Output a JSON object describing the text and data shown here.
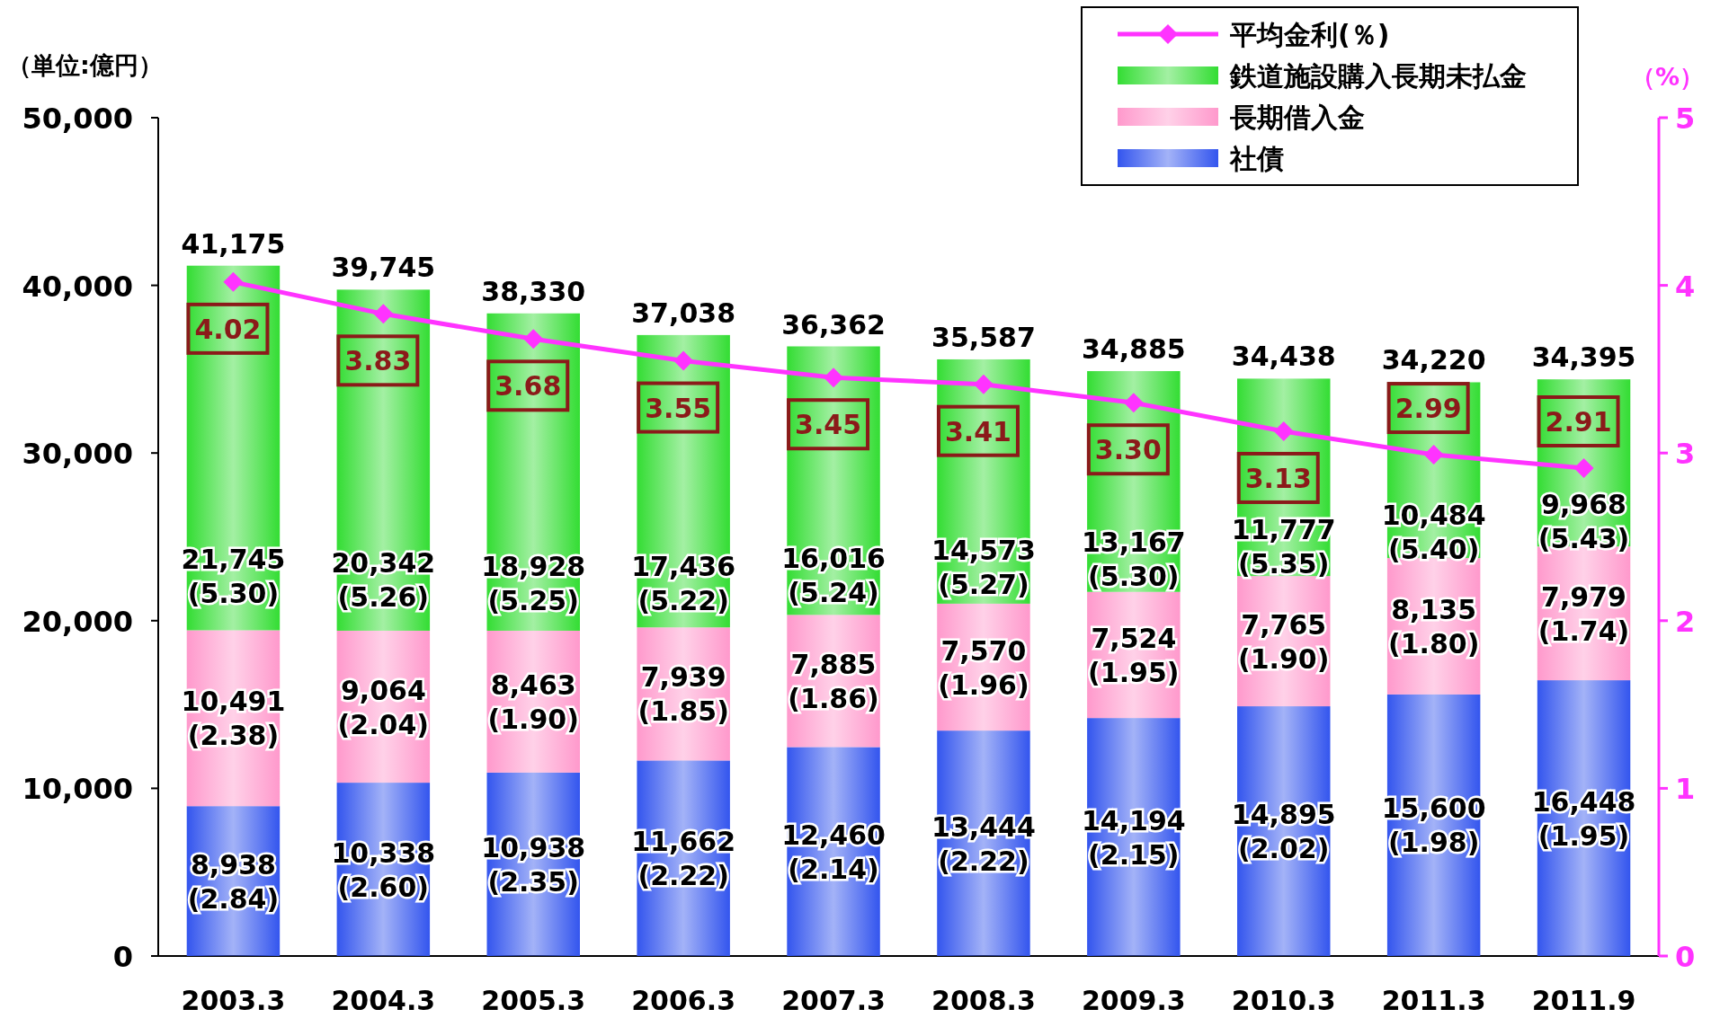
{
  "chart_data": {
    "type": "bar",
    "stacked": true,
    "ylabel": "（単位:億円）",
    "y2label": "（%）",
    "categories": [
      "2003.3",
      "2004.3",
      "2005.3",
      "2006.3",
      "2007.3",
      "2008.3",
      "2009.3",
      "2010.3",
      "2011.3",
      "2011.9"
    ],
    "ylim": [
      0,
      50000
    ],
    "yticks": [
      0,
      {
        "value": 10000,
        "label": "10,000"
      },
      {
        "value": 20000,
        "label": "20,000"
      },
      {
        "value": 30000,
        "label": "30,000"
      },
      {
        "value": 40000,
        "label": "40,000"
      },
      {
        "value": 50000,
        "label": "50,000"
      }
    ],
    "y2lim": [
      0,
      5
    ],
    "y2ticks": [
      0,
      1,
      2,
      3,
      4,
      5
    ],
    "legend": "top right",
    "grid": false,
    "series": [
      {
        "name": "社債",
        "color": "#3355ee",
        "values": [
          8938,
          10338,
          10938,
          11662,
          12460,
          13444,
          14194,
          14895,
          15600,
          16448
        ],
        "value_labels": [
          "8,938\n(2.84)",
          "10,338\n(2.60)",
          "10,938\n(2.35)",
          "11,662\n(2.22)",
          "12,460\n(2.14)",
          "13,444\n(2.22)",
          "14,194\n(2.15)",
          "14,895\n(2.02)",
          "15,600\n(1.98)",
          "16,448\n(1.95)"
        ]
      },
      {
        "name": "長期借入金",
        "color": "#ff99cc",
        "values": [
          10491,
          9064,
          8463,
          7939,
          7885,
          7570,
          7524,
          7765,
          8135,
          7979
        ],
        "value_labels": [
          "10,491\n(2.38)",
          "9,064\n(2.04)",
          "8,463\n(1.90)",
          "7,939\n(1.85)",
          "7,885\n(1.86)",
          "7,570\n(1.96)",
          "7,524\n(1.95)",
          "7,765\n(1.90)",
          "8,135\n(1.80)",
          "7,979\n(1.74)"
        ]
      },
      {
        "name": "鉄道施設購入長期未払金",
        "color": "#33dd33",
        "values": [
          21745,
          20342,
          18928,
          17436,
          16016,
          14573,
          13167,
          11777,
          10484,
          9968
        ],
        "value_labels": [
          "21,745\n(5.30)",
          "20,342\n(5.26)",
          "18,928\n(5.25)",
          "17,436\n(5.22)",
          "16,016\n(5.24)",
          "14,573\n(5.27)",
          "13,167\n(5.30)",
          "11,777\n(5.35)",
          "10,484\n(5.40)",
          "9,968\n(5.43)"
        ]
      },
      {
        "name": "平均金利(％)",
        "type": "line",
        "axis": "y2",
        "color": "#ff33ff",
        "marker": "diamond",
        "values": [
          4.02,
          3.83,
          3.68,
          3.55,
          3.45,
          3.41,
          3.3,
          3.13,
          2.99,
          2.91
        ],
        "value_labels": [
          "4.02",
          "3.83",
          "3.68",
          "3.55",
          "3.45",
          "3.41",
          "3.30",
          "3.13",
          "2.99",
          "2.91"
        ]
      }
    ],
    "totals": [
      "41,175",
      "39,745",
      "38,330",
      "37,038",
      "36,362",
      "35,587",
      "34,885",
      "34,438",
      "34,220",
      "34,395"
    ]
  }
}
